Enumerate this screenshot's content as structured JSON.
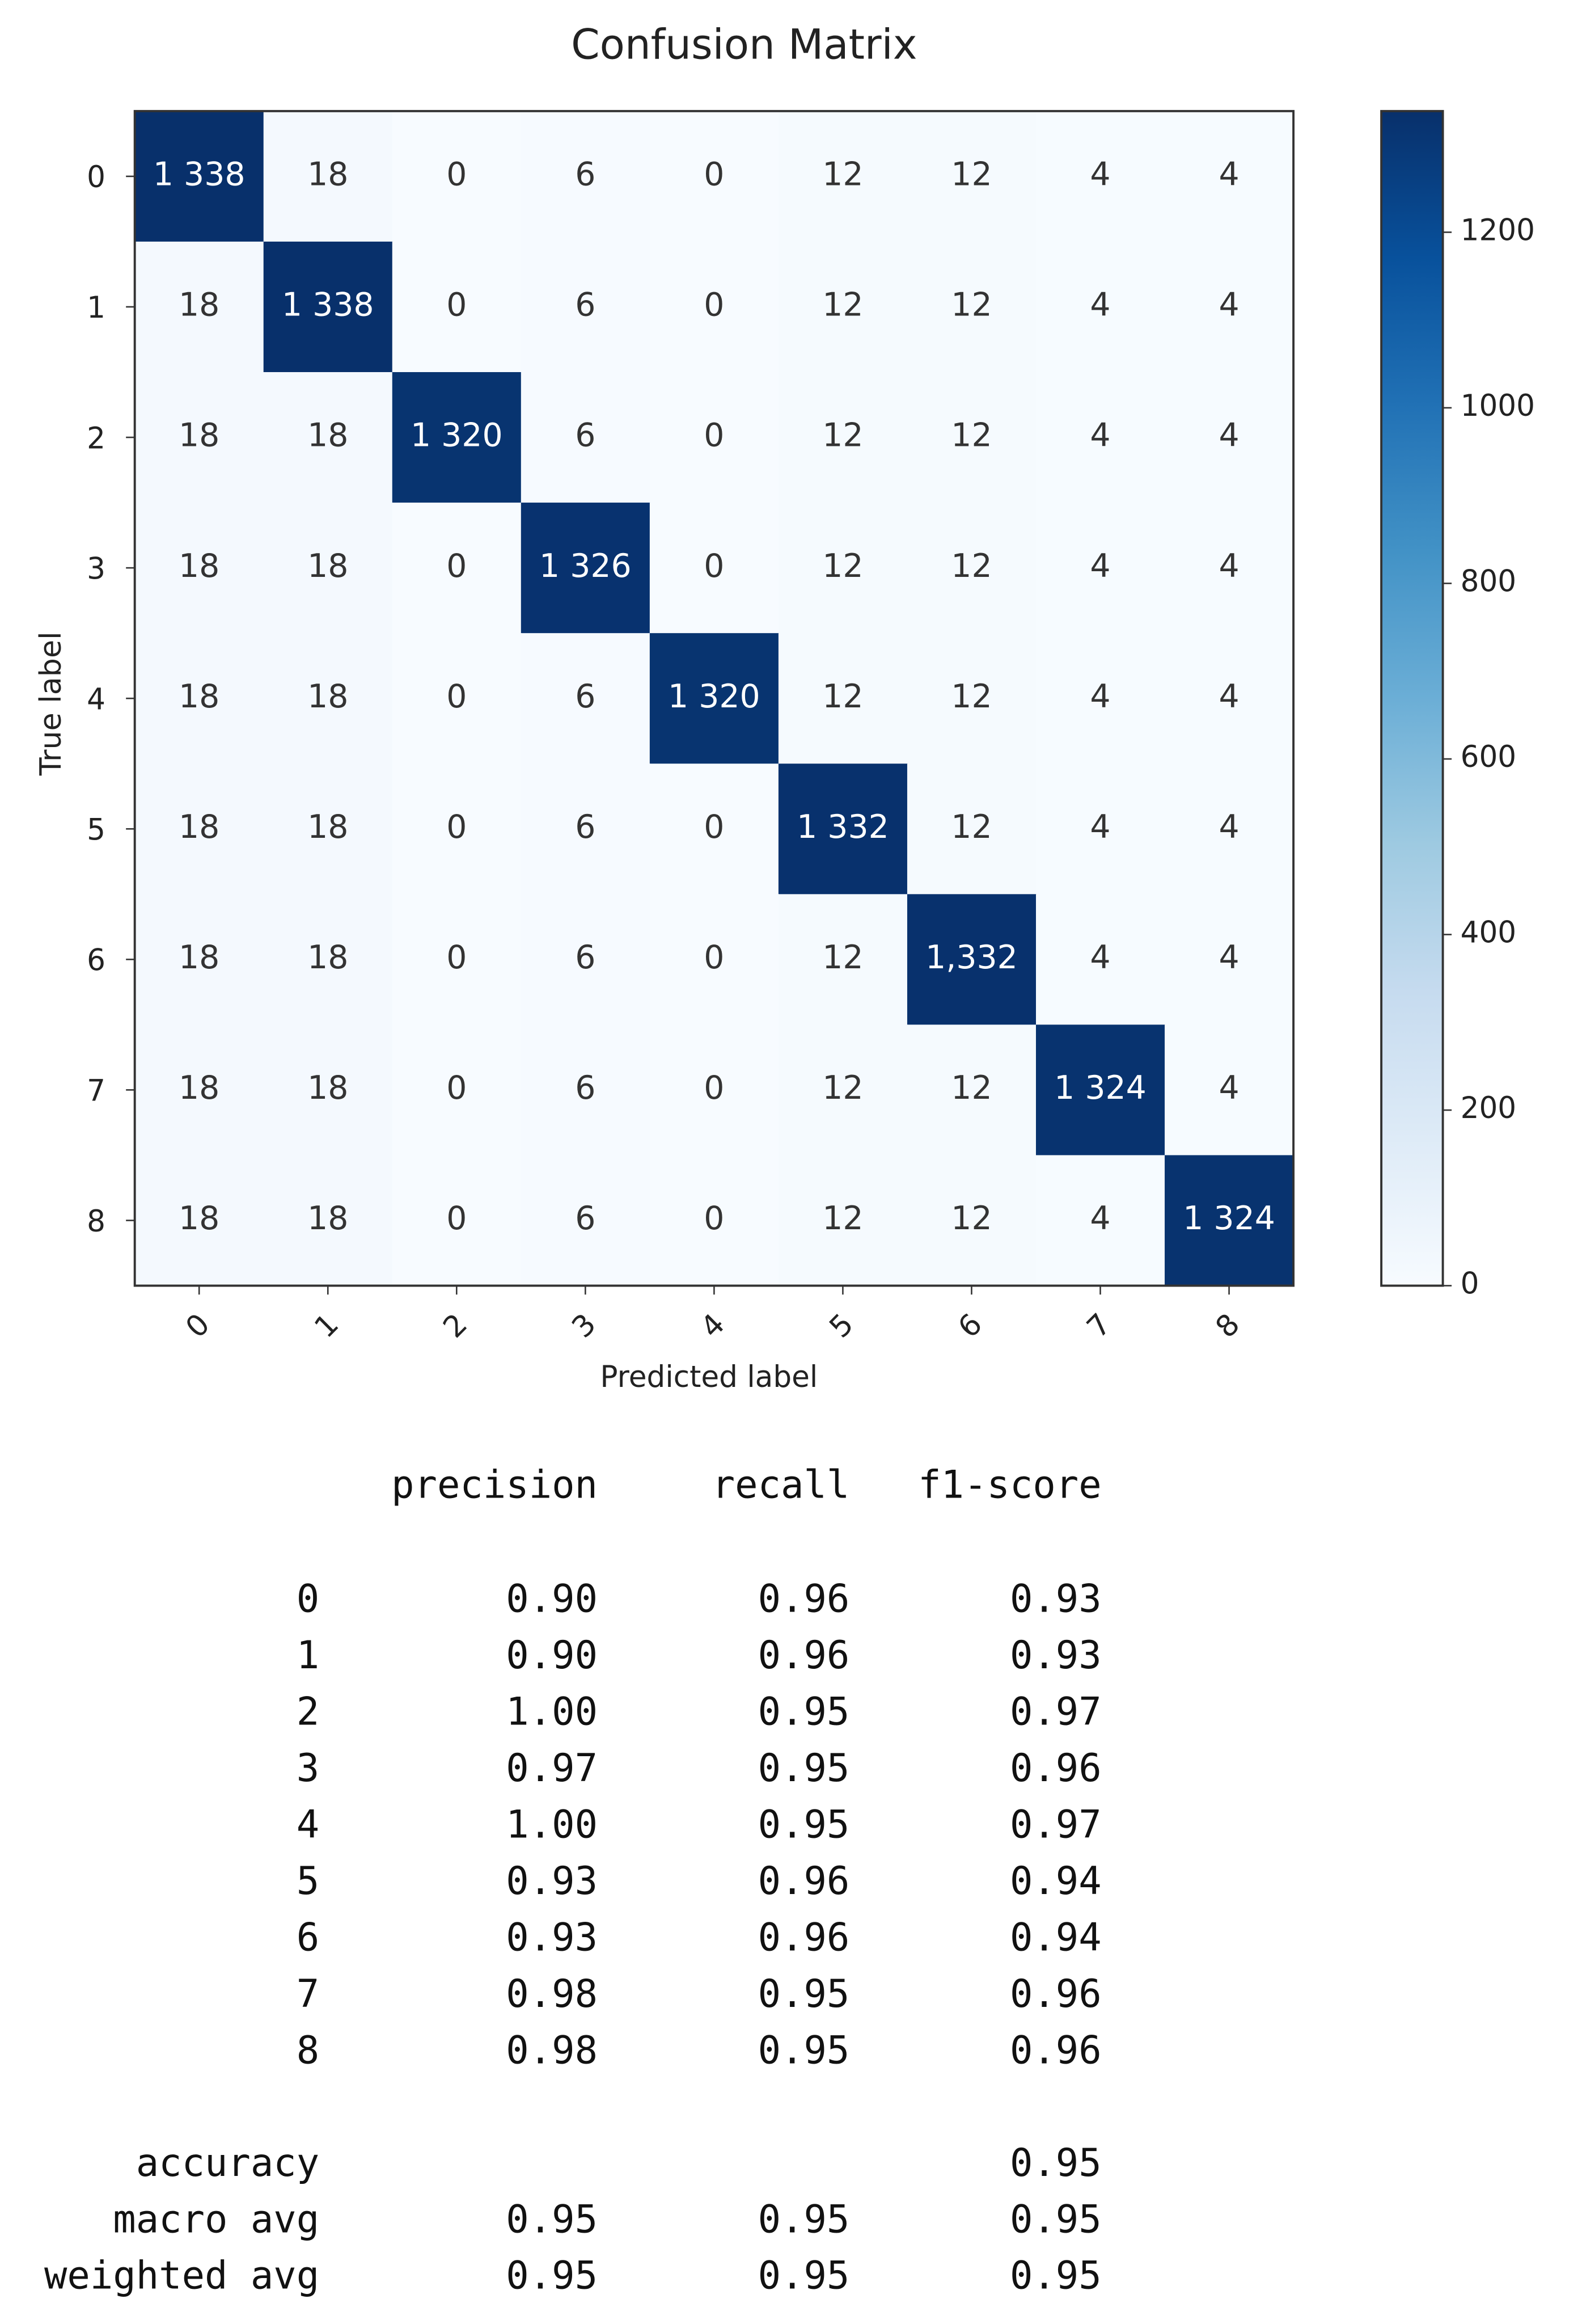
{
  "chart_data": {
    "type": "heatmap",
    "title": "Confusion Matrix",
    "x_label": "Predicted label",
    "y_label": "True label",
    "x_categories": [
      "0",
      "1",
      "2",
      "3",
      "4",
      "5",
      "6",
      "7",
      "8"
    ],
    "y_categories": [
      "0",
      "1",
      "2",
      "3",
      "4",
      "5",
      "6",
      "7",
      "8"
    ],
    "values": [
      [
        1338,
        18,
        0,
        6,
        0,
        12,
        12,
        4,
        4
      ],
      [
        18,
        1338,
        0,
        6,
        0,
        12,
        12,
        4,
        4
      ],
      [
        18,
        18,
        1320,
        6,
        0,
        12,
        12,
        4,
        4
      ],
      [
        18,
        18,
        0,
        1326,
        0,
        12,
        12,
        4,
        4
      ],
      [
        18,
        18,
        0,
        6,
        1320,
        12,
        12,
        4,
        4
      ],
      [
        18,
        18,
        0,
        6,
        0,
        1332,
        12,
        4,
        4
      ],
      [
        18,
        18,
        0,
        6,
        0,
        12,
        1332,
        4,
        4
      ],
      [
        18,
        18,
        0,
        6,
        0,
        12,
        12,
        1324,
        4
      ],
      [
        18,
        18,
        0,
        6,
        0,
        12,
        12,
        4,
        1324
      ]
    ],
    "value_labels": [
      [
        "1 338",
        "18",
        "0",
        "6",
        "0",
        "12",
        "12",
        "4",
        "4"
      ],
      [
        "18",
        "1 338",
        "0",
        "6",
        "0",
        "12",
        "12",
        "4",
        "4"
      ],
      [
        "18",
        "18",
        "1 320",
        "6",
        "0",
        "12",
        "12",
        "4",
        "4"
      ],
      [
        "18",
        "18",
        "0",
        "1 326",
        "0",
        "12",
        "12",
        "4",
        "4"
      ],
      [
        "18",
        "18",
        "0",
        "6",
        "1 320",
        "12",
        "12",
        "4",
        "4"
      ],
      [
        "18",
        "18",
        "0",
        "6",
        "0",
        "1 332",
        "12",
        "4",
        "4"
      ],
      [
        "18",
        "18",
        "0",
        "6",
        "0",
        "12",
        "1,332",
        "4",
        "4"
      ],
      [
        "18",
        "18",
        "0",
        "6",
        "0",
        "12",
        "12",
        "1 324",
        "4"
      ],
      [
        "18",
        "18",
        "0",
        "6",
        "0",
        "12",
        "12",
        "4",
        "1 324"
      ]
    ],
    "colormap": [
      "#f7fbff",
      "#deebf7",
      "#c6dbef",
      "#9ecae1",
      "#6baed6",
      "#4292c6",
      "#2171b5",
      "#08519c",
      "#08306b"
    ],
    "colorbar_lim": [
      0,
      1338
    ],
    "colorbar_ticks": [
      0,
      200,
      400,
      600,
      800,
      1000,
      1200
    ]
  },
  "report": {
    "columns": [
      "precision",
      "recall",
      "f1-score"
    ],
    "rows": [
      {
        "label": "0",
        "precision": "0.90",
        "recall": "0.96",
        "f1-score": "0.93"
      },
      {
        "label": "1",
        "precision": "0.90",
        "recall": "0.96",
        "f1-score": "0.93"
      },
      {
        "label": "2",
        "precision": "1.00",
        "recall": "0.95",
        "f1-score": "0.97"
      },
      {
        "label": "3",
        "precision": "0.97",
        "recall": "0.95",
        "f1-score": "0.96"
      },
      {
        "label": "4",
        "precision": "1.00",
        "recall": "0.95",
        "f1-score": "0.97"
      },
      {
        "label": "5",
        "precision": "0.93",
        "recall": "0.96",
        "f1-score": "0.94"
      },
      {
        "label": "6",
        "precision": "0.93",
        "recall": "0.96",
        "f1-score": "0.94"
      },
      {
        "label": "7",
        "precision": "0.98",
        "recall": "0.95",
        "f1-score": "0.96"
      },
      {
        "label": "8",
        "precision": "0.98",
        "recall": "0.95",
        "f1-score": "0.96"
      }
    ],
    "summary": [
      {
        "label": "accuracy",
        "f1-score": "0.95"
      },
      {
        "label": "macro avg",
        "precision": "0.95",
        "recall": "0.95",
        "f1-score": "0.95"
      },
      {
        "label": "weighted avg",
        "precision": "0.95",
        "recall": "0.95",
        "f1-score": "0.95"
      }
    ]
  }
}
